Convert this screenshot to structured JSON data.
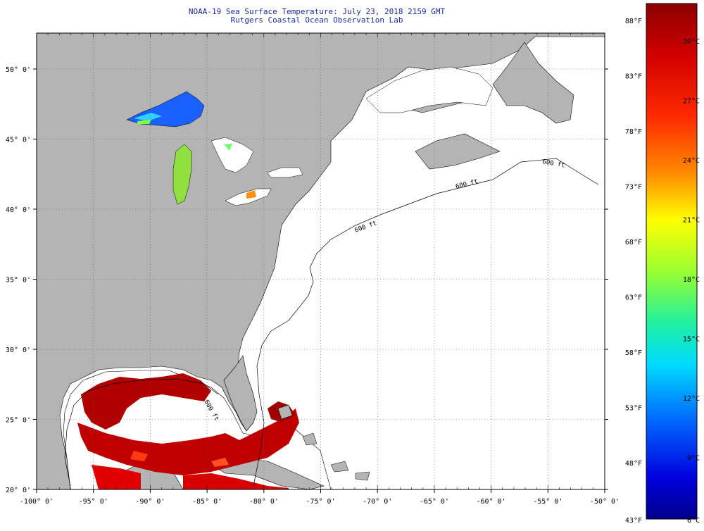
{
  "header": {
    "title": "NOAA-19 Sea Surface Temperature:  July 23, 2018 2159 GMT",
    "subtitle": "Rutgers Coastal Ocean Observation Lab"
  },
  "map": {
    "lon_range": [
      -100,
      -50
    ],
    "lat_range": [
      20,
      52.5
    ],
    "lon_ticks": [
      {
        "v": -100,
        "t": "-100° 0'"
      },
      {
        "v": -95,
        "t": "-95° 0'"
      },
      {
        "v": -90,
        "t": "-90° 0'"
      },
      {
        "v": -85,
        "t": "-85° 0'"
      },
      {
        "v": -80,
        "t": "-80° 0'"
      },
      {
        "v": -75,
        "t": "-75° 0'"
      },
      {
        "v": -70,
        "t": "-70° 0'"
      },
      {
        "v": -65,
        "t": "-65° 0'"
      },
      {
        "v": -60,
        "t": "-60° 0'"
      },
      {
        "v": -55,
        "t": "-55° 0'"
      },
      {
        "v": -50,
        "t": "-50° 0'"
      }
    ],
    "lat_ticks": [
      {
        "v": 20,
        "t": "20° 0'"
      },
      {
        "v": 25,
        "t": "25° 0'"
      },
      {
        "v": 30,
        "t": "30° 0'"
      },
      {
        "v": 35,
        "t": "35° 0'"
      },
      {
        "v": 40,
        "t": "40° 0'"
      },
      {
        "v": 45,
        "t": "45° 0'"
      },
      {
        "v": 50,
        "t": "50° 0'"
      }
    ],
    "isobath_labels": [
      "600 ft",
      "600 ft",
      "600 ft",
      "600 ft"
    ],
    "land_color": "#b4b4b4",
    "water_color": "#ffffff"
  },
  "colorbar": {
    "f_labels": [
      "88°F",
      "83°F",
      "78°F",
      "73°F",
      "68°F",
      "63°F",
      "58°F",
      "53°F",
      "48°F",
      "43°F"
    ],
    "c_labels": [
      "30°C",
      "27°C",
      "24°C",
      "21°C",
      "18°C",
      "15°C",
      "12°C",
      "9°C",
      "6°C"
    ],
    "colors": [
      "#8b0000",
      "#ff0000",
      "#ff8c00",
      "#ffff00",
      "#7fff00",
      "#00ffaa",
      "#00e5ff",
      "#0070ff",
      "#0000ff",
      "#00008b"
    ]
  }
}
